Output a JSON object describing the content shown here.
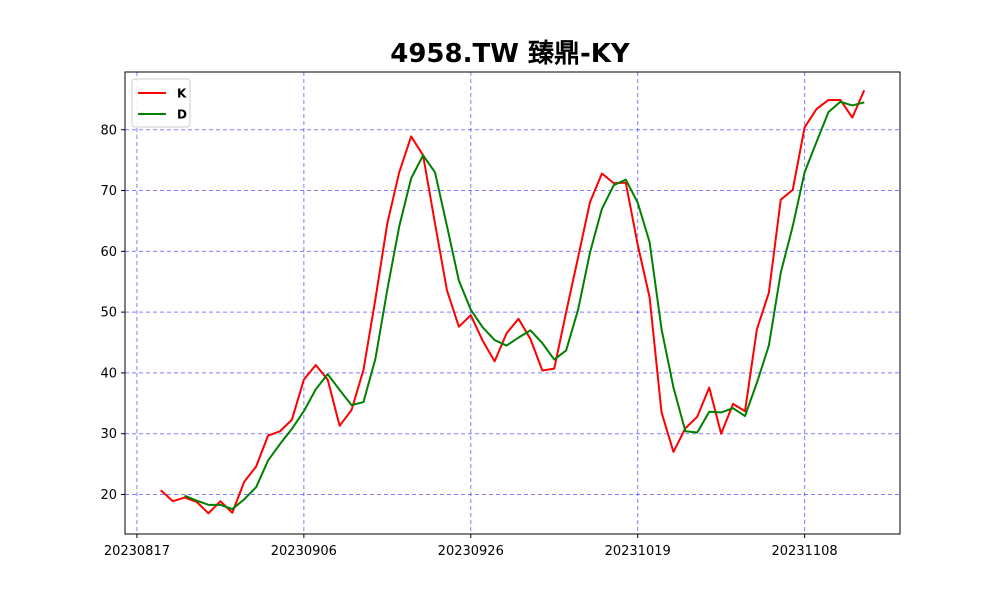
{
  "chart_data": {
    "type": "line",
    "title": "4958.TW 臻鼎-KY",
    "xlabel": "",
    "ylabel": "",
    "ylim": [
      13.5,
      89.5
    ],
    "y_ticks": [
      20,
      30,
      40,
      50,
      60,
      70,
      80
    ],
    "x_ticks": [
      {
        "index": -2,
        "label": "20230817"
      },
      {
        "index": 12,
        "label": "20230906"
      },
      {
        "index": 26,
        "label": "20230926"
      },
      {
        "index": 40,
        "label": "20231019"
      },
      {
        "index": 54,
        "label": "20231108"
      }
    ],
    "grid": true,
    "legend": "top-left",
    "series": [
      {
        "name": "K",
        "color": "#ff0000",
        "values": [
          20.7,
          18.9,
          19.5,
          18.8,
          16.9,
          18.9,
          17.0,
          22.1,
          24.6,
          29.7,
          30.4,
          32.3,
          38.9,
          41.3,
          38.9,
          31.3,
          33.9,
          40.5,
          52.1,
          64.6,
          73.0,
          78.9,
          75.8,
          64.6,
          53.6,
          47.6,
          49.5,
          45.3,
          41.9,
          46.5,
          48.9,
          45.6,
          40.4,
          40.7,
          50.0,
          59.0,
          68.1,
          72.8,
          71.2,
          71.3,
          61.1,
          52.4,
          33.5,
          27.0,
          30.9,
          32.8,
          37.6,
          30.0,
          34.9,
          33.7,
          47.2,
          53.2,
          68.5,
          70.1,
          80.4,
          83.4,
          84.9,
          84.9,
          82.0,
          86.5
        ]
      },
      {
        "name": "D",
        "color": "#008000",
        "values": [
          null,
          null,
          19.8,
          19.0,
          18.3,
          18.3,
          17.6,
          19.2,
          21.2,
          25.6,
          28.3,
          30.8,
          33.7,
          37.3,
          39.8,
          37.2,
          34.7,
          35.2,
          42.3,
          53.7,
          64.1,
          72.0,
          75.8,
          73.0,
          64.2,
          55.2,
          50.4,
          47.5,
          45.4,
          44.5,
          45.8,
          47.0,
          44.9,
          42.2,
          43.7,
          50.4,
          59.8,
          67.0,
          70.9,
          71.8,
          68.0,
          61.5,
          47.2,
          37.6,
          30.4,
          30.2,
          33.6,
          33.5,
          34.2,
          32.9,
          38.4,
          44.5,
          56.5,
          64.1,
          73.0,
          78.0,
          82.9,
          84.6,
          84.0,
          84.5
        ]
      }
    ]
  }
}
